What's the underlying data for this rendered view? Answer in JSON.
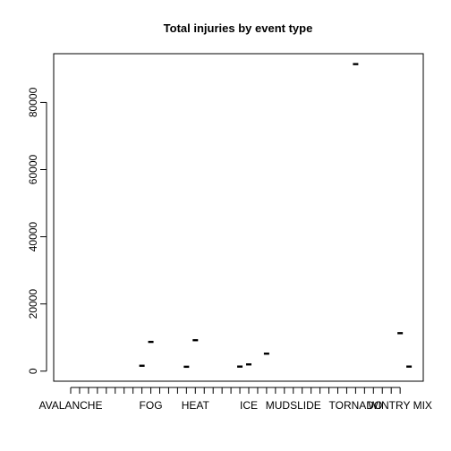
{
  "chart_data": {
    "type": "scatter",
    "title": "Total injuries by event type",
    "xlabel": "",
    "ylabel": "",
    "y_ticks": [
      0,
      20000,
      40000,
      60000,
      80000
    ],
    "y_tick_labels": [
      "0",
      "20000",
      "40000",
      "60000",
      "80000"
    ],
    "ylim": [
      -3000,
      94500
    ],
    "category_count": 38,
    "x_tick_labels": [
      {
        "index": 1,
        "label": "AVALANCHE"
      },
      {
        "index": 10,
        "label": "FOG"
      },
      {
        "index": 15,
        "label": "HEAT"
      },
      {
        "index": 21,
        "label": "ICE"
      },
      {
        "index": 26,
        "label": "MUDSLIDE"
      },
      {
        "index": 33,
        "label": "TORNADO"
      },
      {
        "index": 38,
        "label": "WINTRY MIX"
      }
    ],
    "points": [
      {
        "x": 9,
        "y": 1600
      },
      {
        "x": 10,
        "y": 8700
      },
      {
        "x": 14,
        "y": 1300
      },
      {
        "x": 15,
        "y": 9200
      },
      {
        "x": 20,
        "y": 1350
      },
      {
        "x": 21,
        "y": 2000
      },
      {
        "x": 23,
        "y": 5200
      },
      {
        "x": 33,
        "y": 91400
      },
      {
        "x": 38,
        "y": 11300
      },
      {
        "x": 39,
        "y": 1350
      }
    ],
    "grid": false,
    "legend": "none"
  }
}
